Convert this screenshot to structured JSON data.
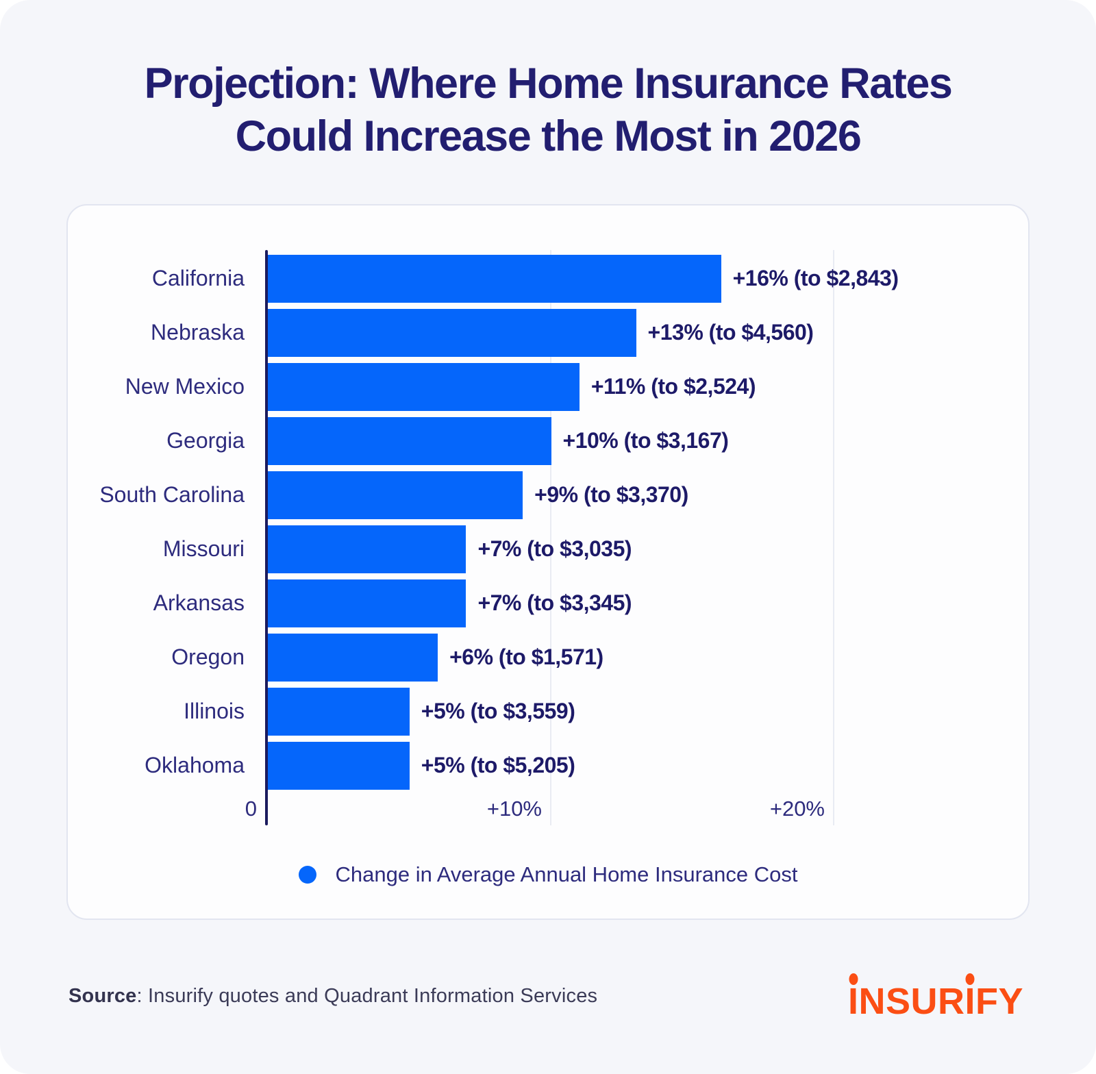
{
  "title": {
    "line1": "Projection: Where Home Insurance Rates",
    "line2": "Could Increase the Most in 2026"
  },
  "chart_data": {
    "type": "bar",
    "orientation": "horizontal",
    "title": "Projection: Where Home Insurance Rates Could Increase the Most in 2026",
    "categories": [
      "California",
      "Nebraska",
      "New Mexico",
      "Georgia",
      "South Carolina",
      "Missouri",
      "Arkansas",
      "Oregon",
      "Illinois",
      "Oklahoma"
    ],
    "values": [
      16,
      13,
      11,
      10,
      9,
      7,
      7,
      6,
      5,
      5
    ],
    "value_labels": [
      "+16% (to $2,843)",
      "+13% (to $4,560)",
      "+11% (to $2,524)",
      "+10% (to $3,167)",
      "+9% (to $3,370)",
      "+7% (to $3,035)",
      "+7% (to $3,345)",
      "+6% (to $1,571)",
      "+5% (to $3,559)",
      "+5% (to $5,205)"
    ],
    "projected_costs": [
      "$2,843",
      "$4,560",
      "$2,524",
      "$3,167",
      "$3,370",
      "$3,035",
      "$3,345",
      "$1,571",
      "$3,559",
      "$5,205"
    ],
    "xlabel": "",
    "ylabel": "",
    "x_ticks": [
      "0",
      "+10%",
      "+20%"
    ],
    "x_tick_values": [
      0,
      10,
      20
    ],
    "xlim": [
      0,
      27
    ],
    "grid": true,
    "bar_color": "#0566fb",
    "legend": {
      "position": "bottom",
      "items": [
        {
          "label": "Change in Average Annual Home Insurance Cost",
          "color": "#0566fb"
        }
      ]
    }
  },
  "footer": {
    "source_label": "Source",
    "source_rest": ": Insurify quotes and Quadrant Information Services"
  },
  "logo": {
    "part1": "I",
    "part2": "NSUR",
    "part3": "I",
    "part4": "FY",
    "color": "#fb4e14"
  },
  "colors": {
    "bar_blue": "#0566fb",
    "title_navy": "#221e70",
    "label_navy": "#2d2b7d",
    "value_navy": "#1d1a68",
    "axis_navy": "#1b1b5e",
    "gridline": "#e9ebf3",
    "page_background": "#f5f6fa",
    "card_background": "#fdfdfe",
    "logo_orange": "#fb4e14"
  }
}
